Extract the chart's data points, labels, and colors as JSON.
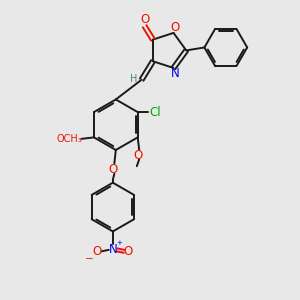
{
  "bg_color": "#e8e8e8",
  "bond_color": "#1a1a1a",
  "oxygen_color": "#ee1100",
  "nitrogen_color": "#0000ee",
  "chlorine_color": "#00aa00",
  "h_color": "#448888",
  "lw": 1.4,
  "fs": 8.5,
  "xlim": [
    0,
    10
  ],
  "ylim": [
    0,
    10
  ]
}
